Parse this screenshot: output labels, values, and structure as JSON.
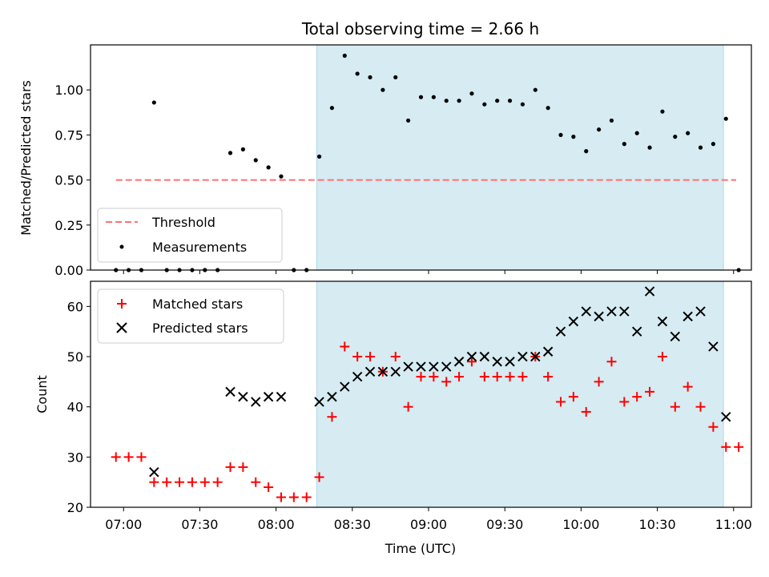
{
  "chart_data": [
    {
      "type": "scatter",
      "title": "Total observing time = 2.66 h",
      "ylabel": "Matched/Predicted stars",
      "xlabel": "",
      "ylim": [
        0,
        1.25
      ],
      "yticks": [
        0.0,
        0.25,
        0.5,
        0.75,
        1.0
      ],
      "ytick_labels": [
        "0.00",
        "0.25",
        "0.50",
        "0.75",
        "1.00"
      ],
      "xlim": [
        "06:47",
        "11:07"
      ],
      "shaded_region": {
        "x_start": "08:16",
        "x_end": "10:56",
        "color": "#add8e6"
      },
      "legend_position": "bottom-left",
      "threshold": {
        "name": "Threshold",
        "value": 0.5,
        "x_start": "06:57",
        "x_end": "11:01",
        "color": "#ff7070"
      },
      "series": [
        {
          "name": "Measurements",
          "color": "#000000",
          "points": [
            [
              "06:57",
              0.0
            ],
            [
              "07:02",
              0.0
            ],
            [
              "07:07",
              0.0
            ],
            [
              "07:12",
              0.93
            ],
            [
              "07:17",
              0.0
            ],
            [
              "07:22",
              0.0
            ],
            [
              "07:27",
              0.0
            ],
            [
              "07:32",
              0.0
            ],
            [
              "07:37",
              0.0
            ],
            [
              "07:42",
              0.65
            ],
            [
              "07:47",
              0.67
            ],
            [
              "07:52",
              0.61
            ],
            [
              "07:57",
              0.57
            ],
            [
              "08:02",
              0.52
            ],
            [
              "08:07",
              0.0
            ],
            [
              "08:12",
              0.0
            ],
            [
              "08:17",
              0.63
            ],
            [
              "08:22",
              0.9
            ],
            [
              "08:27",
              1.19
            ],
            [
              "08:32",
              1.09
            ],
            [
              "08:37",
              1.07
            ],
            [
              "08:42",
              1.0
            ],
            [
              "08:47",
              1.07
            ],
            [
              "08:52",
              0.83
            ],
            [
              "08:57",
              0.96
            ],
            [
              "09:02",
              0.96
            ],
            [
              "09:07",
              0.94
            ],
            [
              "09:12",
              0.94
            ],
            [
              "09:17",
              0.98
            ],
            [
              "09:22",
              0.92
            ],
            [
              "09:27",
              0.94
            ],
            [
              "09:32",
              0.94
            ],
            [
              "09:37",
              0.92
            ],
            [
              "09:42",
              1.0
            ],
            [
              "09:47",
              0.9
            ],
            [
              "09:52",
              0.75
            ],
            [
              "09:57",
              0.74
            ],
            [
              "10:02",
              0.66
            ],
            [
              "10:07",
              0.78
            ],
            [
              "10:12",
              0.83
            ],
            [
              "10:17",
              0.7
            ],
            [
              "10:22",
              0.76
            ],
            [
              "10:27",
              0.68
            ],
            [
              "10:32",
              0.88
            ],
            [
              "10:37",
              0.74
            ],
            [
              "10:42",
              0.76
            ],
            [
              "10:47",
              0.68
            ],
            [
              "10:52",
              0.7
            ],
            [
              "10:57",
              0.84
            ],
            [
              "11:02",
              0.0
            ]
          ]
        }
      ]
    },
    {
      "type": "scatter",
      "title": "",
      "ylabel": "Count",
      "xlabel": "Time (UTC)",
      "ylim": [
        20,
        65
      ],
      "yticks": [
        20,
        30,
        40,
        50,
        60
      ],
      "xlim": [
        "06:47",
        "11:07"
      ],
      "xticks": [
        "07:00",
        "07:30",
        "08:00",
        "08:30",
        "09:00",
        "09:30",
        "10:00",
        "10:30",
        "11:00"
      ],
      "shaded_region": {
        "x_start": "08:16",
        "x_end": "10:56",
        "color": "#add8e6"
      },
      "legend_position": "top-left",
      "series": [
        {
          "name": "Matched stars",
          "marker": "plus",
          "color": "#ff0000",
          "points": [
            [
              "06:57",
              30
            ],
            [
              "07:02",
              30
            ],
            [
              "07:07",
              30
            ],
            [
              "07:12",
              25
            ],
            [
              "07:17",
              25
            ],
            [
              "07:22",
              25
            ],
            [
              "07:27",
              25
            ],
            [
              "07:32",
              25
            ],
            [
              "07:37",
              25
            ],
            [
              "07:42",
              28
            ],
            [
              "07:47",
              28
            ],
            [
              "07:52",
              25
            ],
            [
              "07:57",
              24
            ],
            [
              "08:02",
              22
            ],
            [
              "08:07",
              22
            ],
            [
              "08:12",
              22
            ],
            [
              "08:17",
              26
            ],
            [
              "08:22",
              38
            ],
            [
              "08:27",
              52
            ],
            [
              "08:32",
              50
            ],
            [
              "08:37",
              50
            ],
            [
              "08:42",
              47
            ],
            [
              "08:47",
              50
            ],
            [
              "08:52",
              40
            ],
            [
              "08:57",
              46
            ],
            [
              "09:02",
              46
            ],
            [
              "09:07",
              45
            ],
            [
              "09:12",
              46
            ],
            [
              "09:17",
              49
            ],
            [
              "09:22",
              46
            ],
            [
              "09:27",
              46
            ],
            [
              "09:32",
              46
            ],
            [
              "09:37",
              46
            ],
            [
              "09:42",
              50
            ],
            [
              "09:47",
              46
            ],
            [
              "09:52",
              41
            ],
            [
              "09:57",
              42
            ],
            [
              "10:02",
              39
            ],
            [
              "10:07",
              45
            ],
            [
              "10:12",
              49
            ],
            [
              "10:17",
              41
            ],
            [
              "10:22",
              42
            ],
            [
              "10:27",
              43
            ],
            [
              "10:32",
              50
            ],
            [
              "10:37",
              40
            ],
            [
              "10:42",
              44
            ],
            [
              "10:47",
              40
            ],
            [
              "10:52",
              36
            ],
            [
              "10:57",
              32
            ],
            [
              "11:02",
              32
            ]
          ]
        },
        {
          "name": "Predicted stars",
          "marker": "x",
          "color": "#000000",
          "points": [
            [
              "07:12",
              27
            ],
            [
              "07:42",
              43
            ],
            [
              "07:47",
              42
            ],
            [
              "07:52",
              41
            ],
            [
              "07:57",
              42
            ],
            [
              "08:02",
              42
            ],
            [
              "08:17",
              41
            ],
            [
              "08:22",
              42
            ],
            [
              "08:27",
              44
            ],
            [
              "08:32",
              46
            ],
            [
              "08:37",
              47
            ],
            [
              "08:42",
              47
            ],
            [
              "08:47",
              47
            ],
            [
              "08:52",
              48
            ],
            [
              "08:57",
              48
            ],
            [
              "09:02",
              48
            ],
            [
              "09:07",
              48
            ],
            [
              "09:12",
              49
            ],
            [
              "09:17",
              50
            ],
            [
              "09:22",
              50
            ],
            [
              "09:27",
              49
            ],
            [
              "09:32",
              49
            ],
            [
              "09:37",
              50
            ],
            [
              "09:42",
              50
            ],
            [
              "09:47",
              51
            ],
            [
              "09:52",
              55
            ],
            [
              "09:57",
              57
            ],
            [
              "10:02",
              59
            ],
            [
              "10:07",
              58
            ],
            [
              "10:12",
              59
            ],
            [
              "10:17",
              59
            ],
            [
              "10:22",
              55
            ],
            [
              "10:27",
              63
            ],
            [
              "10:32",
              57
            ],
            [
              "10:37",
              54
            ],
            [
              "10:42",
              58
            ],
            [
              "10:47",
              59
            ],
            [
              "10:52",
              52
            ],
            [
              "10:57",
              38
            ]
          ]
        }
      ]
    }
  ]
}
